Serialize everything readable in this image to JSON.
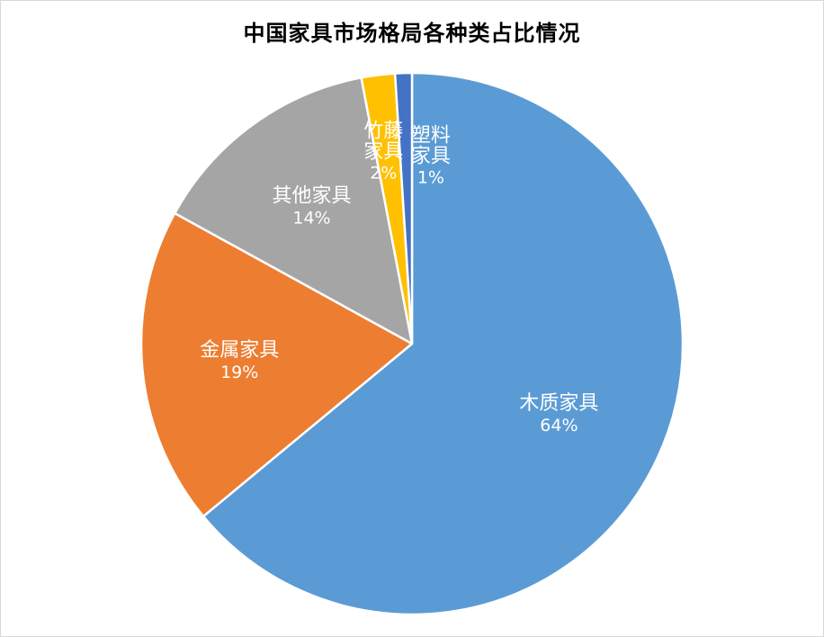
{
  "chart_data": {
    "type": "pie",
    "title": "中国家具市场格局各种类占比情况",
    "unit": "%",
    "slices": [
      {
        "name": "木质家具",
        "value": 64,
        "label_lines": [
          "木质家具"
        ],
        "pct_label": "64%",
        "color": "#5b9bd5"
      },
      {
        "name": "金属家具",
        "value": 19,
        "label_lines": [
          "金属家具"
        ],
        "pct_label": "19%",
        "color": "#ed7d31"
      },
      {
        "name": "其他家具",
        "value": 14,
        "label_lines": [
          "其他家具"
        ],
        "pct_label": "14%",
        "color": "#a5a5a5"
      },
      {
        "name": "竹藤家具",
        "value": 2,
        "label_lines": [
          "竹藤",
          "家具"
        ],
        "pct_label": "2%",
        "color": "#ffc000"
      },
      {
        "name": "塑料家具",
        "value": 1,
        "label_lines": [
          "塑料",
          "家具"
        ],
        "pct_label": "1%",
        "color": "#4472c4"
      }
    ],
    "legend": "none",
    "data_labels": "inside",
    "start_angle_deg": 0,
    "direction": "clockwise"
  }
}
